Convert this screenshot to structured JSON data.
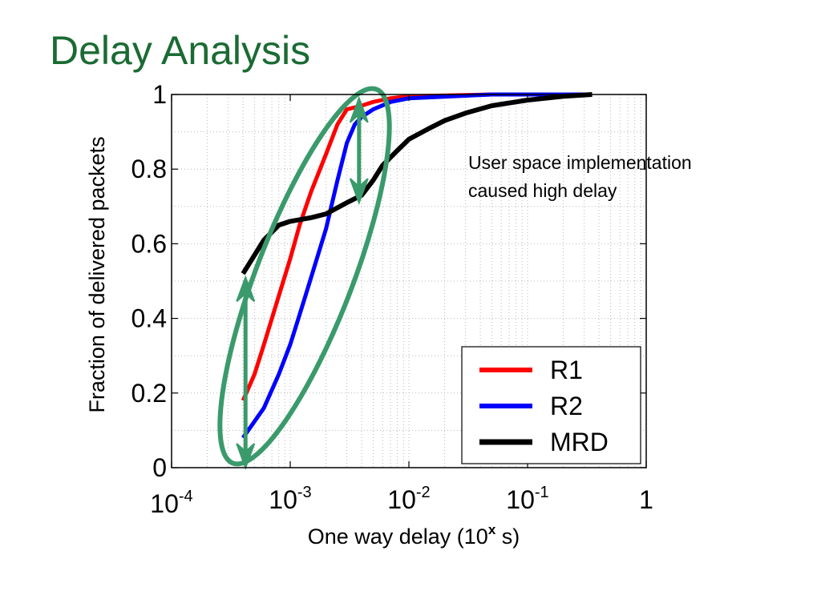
{
  "slide": {
    "title": "Delay Analysis",
    "title_color": "#1a6b33"
  },
  "chart_data": {
    "type": "line",
    "title": "",
    "xlabel_parts": [
      "One way delay (10",
      "x",
      " s)"
    ],
    "ylabel": "Fraction of delivered packets",
    "x_scale": "log",
    "xlim": [
      0.0001,
      1
    ],
    "ylim": [
      0,
      1
    ],
    "x_ticks": [
      {
        "value": 0.0001,
        "base": "10",
        "exp": "-4"
      },
      {
        "value": 0.001,
        "base": "10",
        "exp": "-3"
      },
      {
        "value": 0.01,
        "base": "10",
        "exp": "-2"
      },
      {
        "value": 0.1,
        "base": "10",
        "exp": "-1"
      },
      {
        "value": 1,
        "base": "1",
        "exp": ""
      }
    ],
    "y_ticks": [
      {
        "value": 0,
        "label": "0"
      },
      {
        "value": 0.2,
        "label": "0.2"
      },
      {
        "value": 0.4,
        "label": "0.4"
      },
      {
        "value": 0.6,
        "label": "0.6"
      },
      {
        "value": 0.8,
        "label": "0.8"
      },
      {
        "value": 1,
        "label": "1"
      }
    ],
    "grid": true,
    "legend_position": "bottom-right",
    "series": [
      {
        "name": "R1",
        "color": "#ff0000",
        "points": [
          [
            0.0004,
            0.18
          ],
          [
            0.0005,
            0.25
          ],
          [
            0.0006,
            0.33
          ],
          [
            0.0008,
            0.46
          ],
          [
            0.001,
            0.56
          ],
          [
            0.0012,
            0.65
          ],
          [
            0.0015,
            0.74
          ],
          [
            0.002,
            0.84
          ],
          [
            0.0025,
            0.92
          ],
          [
            0.003,
            0.96
          ],
          [
            0.004,
            0.97
          ],
          [
            0.005,
            0.98
          ],
          [
            0.007,
            0.99
          ],
          [
            0.01,
            0.995
          ],
          [
            0.05,
            1
          ],
          [
            0.35,
            1
          ]
        ]
      },
      {
        "name": "R2",
        "color": "#0000ff",
        "points": [
          [
            0.0004,
            0.08
          ],
          [
            0.0006,
            0.16
          ],
          [
            0.0008,
            0.25
          ],
          [
            0.001,
            0.33
          ],
          [
            0.0012,
            0.41
          ],
          [
            0.0015,
            0.51
          ],
          [
            0.002,
            0.64
          ],
          [
            0.0025,
            0.77
          ],
          [
            0.003,
            0.87
          ],
          [
            0.0035,
            0.92
          ],
          [
            0.004,
            0.94
          ],
          [
            0.005,
            0.96
          ],
          [
            0.007,
            0.98
          ],
          [
            0.01,
            0.99
          ],
          [
            0.05,
            1
          ],
          [
            0.35,
            1
          ]
        ]
      },
      {
        "name": "MRD",
        "color": "#000000",
        "points": [
          [
            0.0004,
            0.52
          ],
          [
            0.0006,
            0.61
          ],
          [
            0.0008,
            0.65
          ],
          [
            0.001,
            0.66
          ],
          [
            0.0015,
            0.67
          ],
          [
            0.002,
            0.68
          ],
          [
            0.003,
            0.71
          ],
          [
            0.004,
            0.73
          ],
          [
            0.005,
            0.77
          ],
          [
            0.006,
            0.81
          ],
          [
            0.008,
            0.85
          ],
          [
            0.01,
            0.88
          ],
          [
            0.015,
            0.91
          ],
          [
            0.02,
            0.93
          ],
          [
            0.03,
            0.95
          ],
          [
            0.05,
            0.97
          ],
          [
            0.1,
            0.985
          ],
          [
            0.2,
            0.995
          ],
          [
            0.35,
            1
          ]
        ]
      }
    ],
    "annotations": [
      {
        "text_lines": [
          "User space implementation",
          "caused high delay"
        ],
        "x": 0.15,
        "y": 0.8
      }
    ],
    "highlight_color": "#3a9a6b"
  }
}
